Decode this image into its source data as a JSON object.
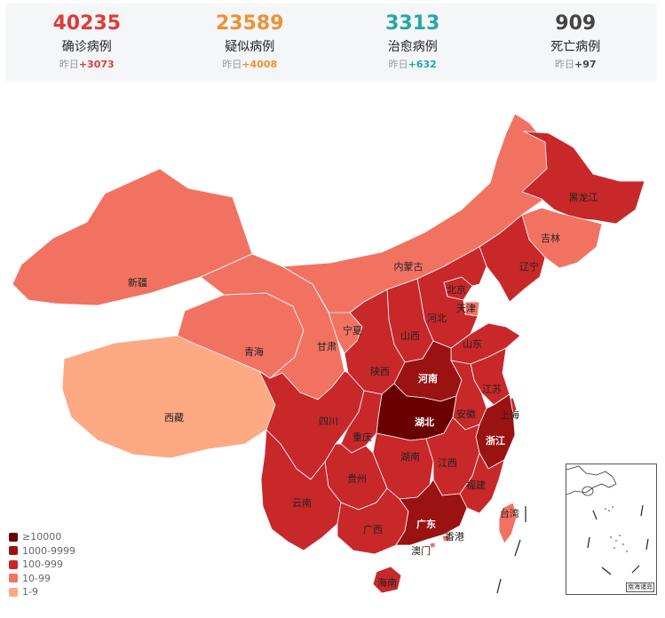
{
  "stats": [
    {
      "id": "confirmed",
      "value": "40235",
      "label": "确诊病例",
      "delta_prefix": "昨日",
      "delta": "+3073",
      "color": "#e03a3a"
    },
    {
      "id": "suspected",
      "value": "23589",
      "label": "疑似病例",
      "delta_prefix": "昨日",
      "delta": "+4008",
      "color": "#ec9235"
    },
    {
      "id": "recovered",
      "value": "3313",
      "label": "治愈病例",
      "delta_prefix": "昨日",
      "delta": "+632",
      "color": "#24a7aa"
    },
    {
      "id": "deaths",
      "value": "909",
      "label": "死亡病例",
      "delta_prefix": "昨日",
      "delta": "+97",
      "color": "#444444"
    }
  ],
  "legend": [
    {
      "label": "≥10000",
      "color": "#6b0000"
    },
    {
      "label": "1000-9999",
      "color": "#9b1212"
    },
    {
      "label": "100-999",
      "color": "#c8282a"
    },
    {
      "label": "10-99",
      "color": "#f27262"
    },
    {
      "label": "1-9",
      "color": "#fda984"
    }
  ],
  "colors": {
    "tier_10000": "#6b0000",
    "tier_1000": "#9b1212",
    "tier_100": "#c8282a",
    "tier_10": "#f27262",
    "tier_1": "#fda984",
    "border": "#ffffff"
  },
  "provinces": [
    {
      "name": "新疆",
      "tier": "tier_10"
    },
    {
      "name": "西藏",
      "tier": "tier_1"
    },
    {
      "name": "青海",
      "tier": "tier_10"
    },
    {
      "name": "甘肃",
      "tier": "tier_10"
    },
    {
      "name": "内蒙古",
      "tier": "tier_10"
    },
    {
      "name": "宁夏",
      "tier": "tier_10"
    },
    {
      "name": "黑龙江",
      "tier": "tier_100"
    },
    {
      "name": "吉林",
      "tier": "tier_10"
    },
    {
      "name": "辽宁",
      "tier": "tier_100"
    },
    {
      "name": "北京",
      "tier": "tier_100"
    },
    {
      "name": "天津",
      "tier": "tier_10"
    },
    {
      "name": "河北",
      "tier": "tier_100"
    },
    {
      "name": "山西",
      "tier": "tier_100"
    },
    {
      "name": "山东",
      "tier": "tier_100"
    },
    {
      "name": "陕西",
      "tier": "tier_100"
    },
    {
      "name": "河南",
      "tier": "tier_1000"
    },
    {
      "name": "江苏",
      "tier": "tier_100"
    },
    {
      "name": "安徽",
      "tier": "tier_100"
    },
    {
      "name": "上海",
      "tier": "tier_100"
    },
    {
      "name": "湖北",
      "tier": "tier_10000"
    },
    {
      "name": "浙江",
      "tier": "tier_1000"
    },
    {
      "name": "四川",
      "tier": "tier_100"
    },
    {
      "name": "重庆",
      "tier": "tier_100"
    },
    {
      "name": "湖南",
      "tier": "tier_100"
    },
    {
      "name": "江西",
      "tier": "tier_100"
    },
    {
      "name": "贵州",
      "tier": "tier_100"
    },
    {
      "name": "福建",
      "tier": "tier_100"
    },
    {
      "name": "云南",
      "tier": "tier_100"
    },
    {
      "name": "广西",
      "tier": "tier_100"
    },
    {
      "name": "广东",
      "tier": "tier_1000"
    },
    {
      "name": "台湾",
      "tier": "tier_10"
    },
    {
      "name": "香港",
      "tier": "tier_10"
    },
    {
      "name": "澳门",
      "tier": "tier_10"
    },
    {
      "name": "海南",
      "tier": "tier_100"
    }
  ],
  "inset": {
    "label": "南海诸岛"
  }
}
